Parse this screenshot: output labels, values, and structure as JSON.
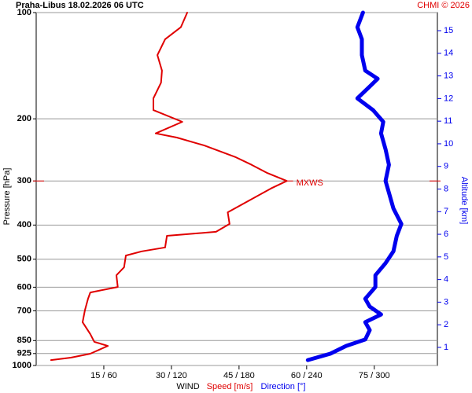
{
  "chart_data": {
    "type": "line",
    "title": "Praha-Libus   18.02.2026 06 UTC",
    "credit": "CHMI © 2026",
    "y_label": "Pressure [hPa]",
    "y2_label": "Altitude [km]",
    "x_label": "WIND",
    "x_label_speed": "Speed [m/s]",
    "x_label_direction": "Direction [°]",
    "log_y": true,
    "grid": true,
    "ylim": [
      1000,
      100
    ],
    "yticks": [
      100,
      200,
      300,
      400,
      500,
      600,
      700,
      850,
      925,
      1000
    ],
    "y2lim": [
      0.2,
      15.8
    ],
    "y2ticks": [
      1,
      2,
      3,
      4,
      5,
      6,
      7,
      8,
      9,
      10,
      11,
      12,
      13,
      14,
      15
    ],
    "xlim": [
      0,
      89
    ],
    "x2lim": [
      0,
      356
    ],
    "xticks": [
      {
        "value": 15,
        "label": "15 / 60"
      },
      {
        "value": 30,
        "label": "30 / 120"
      },
      {
        "value": 45,
        "label": "45 / 180"
      },
      {
        "value": 60,
        "label": "60 / 240"
      },
      {
        "value": 75,
        "label": "75 / 300"
      }
    ],
    "annotation": {
      "text": "MXWS",
      "pressure": 300,
      "color": "#e00000"
    },
    "series": [
      {
        "name": "Speed [m/s]",
        "color": "#e00000",
        "width": 2,
        "axis": "x",
        "pressure": [
          965,
          950,
          926,
          880,
          857,
          815,
          754,
          698,
          647,
          621,
          599,
          555,
          527,
          488,
          475,
          463,
          429,
          418,
          397,
          368,
          340,
          315,
          300,
          285,
          270,
          257,
          238,
          226,
          220,
          204,
          189,
          175,
          158,
          146,
          132,
          119,
          110,
          100
        ],
        "values": [
          3.3,
          7.7,
          12,
          15.9,
          12.9,
          12,
          10.3,
          10.8,
          11.5,
          12,
          18.1,
          17.8,
          19.5,
          19.9,
          23.4,
          28.6,
          29,
          39.9,
          42.9,
          42.5,
          47.4,
          52.1,
          55.6,
          51.3,
          47.8,
          44.3,
          37.3,
          31.2,
          26.5,
          32.4,
          26,
          26,
          27.7,
          27.9,
          26.9,
          28.6,
          32.1,
          33.5
        ]
      },
      {
        "name": "Direction [°]",
        "color": "#0000ee",
        "width": 5,
        "axis": "x2",
        "pressure": [
          965,
          926,
          880,
          844,
          794,
          754,
          717,
          681,
          647,
          599,
          555,
          513,
          475,
          429,
          397,
          359,
          324,
          300,
          270,
          244,
          220,
          204,
          189,
          175,
          162,
          154,
          146,
          132,
          119,
          110,
          100
        ],
        "values": [
          241,
          261,
          275,
          292,
          296,
          292,
          306,
          296,
          292,
          301,
          301,
          310,
          317,
          320,
          324,
          317,
          313,
          310,
          313,
          310,
          306,
          308,
          299,
          285,
          296,
          303,
          292,
          289,
          289,
          285,
          290
        ]
      }
    ]
  }
}
